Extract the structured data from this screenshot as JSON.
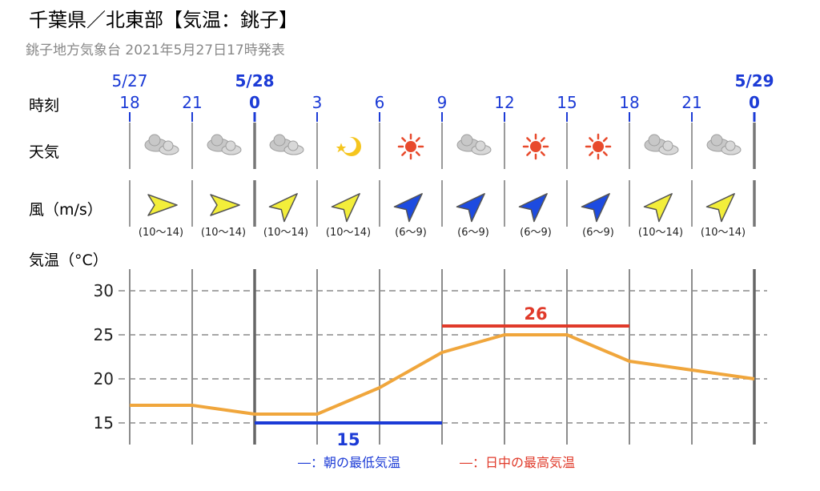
{
  "header": {
    "title": "千葉県／北東部【気温：銚子】",
    "subtitle": "銚子地方気象台 2021年5月27日17時発表"
  },
  "row_labels": {
    "time": "時刻",
    "weather": "天気",
    "wind": "風（m/s）",
    "temp": "気温（°C）"
  },
  "columns": [
    {
      "date": "5/27",
      "time": "18",
      "weather": "cloud-icon",
      "wind_dir": "E",
      "wind": "(10～14)"
    },
    {
      "date": "",
      "time": "21",
      "weather": "cloud-icon",
      "wind_dir": "E",
      "wind": "(10～14)"
    },
    {
      "date": "5/28",
      "time": "0",
      "weather": "cloud-icon",
      "wind_dir": "NE",
      "wind": "(10～14)"
    },
    {
      "date": "",
      "time": "3",
      "weather": "clear-night-icon",
      "wind_dir": "NE",
      "wind": "(10～14)"
    },
    {
      "date": "",
      "time": "6",
      "weather": "sun-icon",
      "wind_dir": "NE",
      "wind": "(6～9)"
    },
    {
      "date": "",
      "time": "9",
      "weather": "cloud-icon",
      "wind_dir": "NE",
      "wind": "(6～9)"
    },
    {
      "date": "",
      "time": "12",
      "weather": "sun-icon",
      "wind_dir": "NE",
      "wind": "(6～9)"
    },
    {
      "date": "",
      "time": "15",
      "weather": "sun-icon",
      "wind_dir": "NE",
      "wind": "(6～9)"
    },
    {
      "date": "",
      "time": "18",
      "weather": "cloud-icon",
      "wind_dir": "NE",
      "wind": "(10～14)"
    },
    {
      "date": "",
      "time": "21",
      "weather": "cloud-icon",
      "wind_dir": "NE",
      "wind": "(10～14)"
    },
    {
      "date": "5/29",
      "time": "0",
      "weather": "",
      "wind_dir": "",
      "wind": ""
    }
  ],
  "legend": {
    "min": "―：朝の最低気温",
    "max": "―：日中の最高気温"
  },
  "colors": {
    "date_blue": "#1c3bd6",
    "temp_line": "#f0a63c",
    "min_line": "#1c3bd6",
    "max_line": "#e03a2a",
    "wind_strong": "#f3ee3a",
    "wind_moderate": "#1d4be0"
  },
  "chart_data": {
    "type": "line",
    "x": [
      "18",
      "21",
      "0",
      "3",
      "6",
      "9",
      "12",
      "15",
      "18",
      "21",
      "0"
    ],
    "series": [
      {
        "values": [
          17,
          17,
          16,
          16,
          19,
          23,
          25,
          25,
          22,
          21,
          20
        ]
      }
    ],
    "ylim": [
      13.5,
      31.5
    ],
    "yticks": [
      15,
      20,
      25,
      30
    ],
    "min_temp": {
      "value": 15,
      "label": "15",
      "from_index": 2,
      "to_index": 5
    },
    "max_temp": {
      "value": 26,
      "label": "26",
      "from_index": 5,
      "to_index": 8
    },
    "grid": true
  }
}
